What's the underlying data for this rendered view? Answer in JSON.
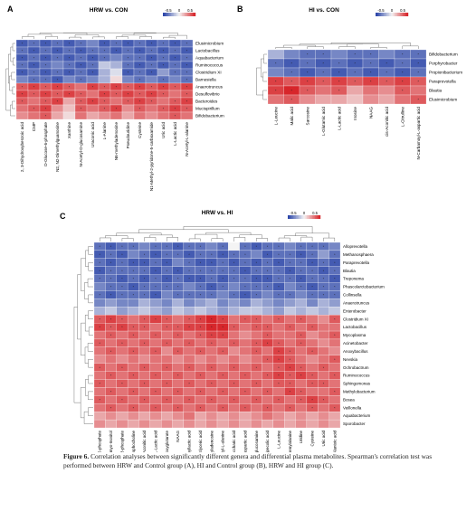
{
  "caption": {
    "label": "Figure 6.",
    "text": "Correlation analyses between significantly different genera and differential plasma metabolites. Spearman's correlation test was performed between HRW and Control group (A), HI and Control group (B), HRW and HI group (C)."
  },
  "colors": {
    "low": "#2b45a8",
    "mid": "#f4f4f4",
    "high": "#d7262b"
  },
  "chart_data": [
    {
      "type": "heatmap",
      "panel": "A",
      "title": "HRW vs. CON",
      "legend_ticks": [
        "-0.5",
        "0",
        "0.5"
      ],
      "rows": [
        "Elusimicrobium",
        "Lactobacillus",
        "Aquabacterium",
        "Ruminococcus",
        "Clostridium XI",
        "Barnesiella",
        "Anaerotruncus",
        "Desulfovibrio",
        "Bacteroides",
        "Mucispirillum",
        "Bifidobacterium"
      ],
      "cols": [
        "2, 3-Dihydroxybenzoic acid",
        "CMP",
        "D-Glucose-6-phosphate",
        "N2, N2-Dimethylguanosine",
        "Xanthine",
        "N-Acetyl-D-glucosamine",
        "Uraconic acid",
        "L-Alanine",
        "N6-methyladenosine",
        "Pseudouridine",
        "Cysteine",
        "N1-Methyl-2-pyridone-5-carboxamide",
        "Uric acid",
        "L-Lactic acid",
        "N-Acetyl-L-alanine"
      ],
      "values": [
        [
          -0.7,
          -0.6,
          -0.7,
          -0.6,
          -0.7,
          -0.6,
          -0.5,
          -0.7,
          -0.6,
          -0.7,
          -0.6,
          -0.7,
          -0.6,
          -0.7,
          -0.6
        ],
        [
          -0.6,
          -0.7,
          -0.6,
          -0.7,
          -0.6,
          -0.7,
          -0.6,
          -0.6,
          -0.7,
          -0.6,
          -0.7,
          -0.6,
          -0.7,
          -0.6,
          -0.7
        ],
        [
          -0.7,
          -0.6,
          -0.7,
          -0.6,
          -0.7,
          -0.6,
          -0.7,
          -0.6,
          -0.5,
          -0.6,
          -0.6,
          -0.7,
          -0.6,
          -0.7,
          -0.6
        ],
        [
          -0.6,
          -0.7,
          -0.6,
          -0.5,
          -0.6,
          -0.7,
          -0.6,
          -0.2,
          -0.3,
          -0.6,
          -0.7,
          -0.6,
          -0.7,
          -0.6,
          -0.7
        ],
        [
          -0.7,
          -0.6,
          -0.7,
          -0.6,
          -0.7,
          -0.6,
          -0.7,
          -0.3,
          -0.1,
          -0.7,
          -0.6,
          -0.7,
          -0.4,
          -0.6,
          -0.6
        ],
        [
          -0.5,
          -0.6,
          -0.6,
          -0.7,
          -0.5,
          -0.6,
          -0.5,
          -0.3,
          0.1,
          -0.5,
          -0.6,
          -0.5,
          -0.6,
          -0.5,
          -0.6
        ],
        [
          0.6,
          0.7,
          0.6,
          0.7,
          0.6,
          0.5,
          0.7,
          0.6,
          0.7,
          0.6,
          0.7,
          0.6,
          0.7,
          0.6,
          0.7
        ],
        [
          0.7,
          0.6,
          0.7,
          0.6,
          0.7,
          0.6,
          0.5,
          0.7,
          0.6,
          0.7,
          0.6,
          0.7,
          0.6,
          0.5,
          0.6
        ],
        [
          0.6,
          0.5,
          0.6,
          0.7,
          0.3,
          0.6,
          0.7,
          0.6,
          0.5,
          0.6,
          0.7,
          0.6,
          0.5,
          0.6,
          0.7
        ],
        [
          0.5,
          0.6,
          0.7,
          0.4,
          0.2,
          0.6,
          0.5,
          0.6,
          0.7,
          0.4,
          0.6,
          0.5,
          0.6,
          0.7,
          0.6
        ],
        [
          0.4,
          0.5,
          0.6,
          0.3,
          0.1,
          0.5,
          0.3,
          0.4,
          0.5,
          0.3,
          0.5,
          0.4,
          0.5,
          0.6,
          0.5
        ]
      ]
    },
    {
      "type": "heatmap",
      "panel": "B",
      "title": "HI vs. CON",
      "legend_ticks": [
        "-0.5",
        "0",
        "0.5"
      ],
      "rows": [
        "Bifidobacterium",
        "Porphyrobacter",
        "Propionibacterium",
        "Paraprevotella",
        "Blautia",
        "Elusimicrobium"
      ],
      "cols": [
        "L-Leucine",
        "Malic acid",
        "Sarcosine",
        "L-Glutamic acid",
        "L-Lactic acid",
        "Inosine",
        "NAAG",
        "cis-Aconitic acid",
        "L-Citrulline",
        "N-Carbamoyl-L-aspartic acid"
      ],
      "values": [
        [
          -0.3,
          -0.5,
          -0.6,
          -0.6,
          -0.5,
          -0.6,
          -0.6,
          -0.5,
          -0.6,
          -0.6
        ],
        [
          -0.6,
          -0.7,
          -0.6,
          -0.7,
          -0.6,
          -0.7,
          -0.6,
          -0.7,
          -0.6,
          -0.7
        ],
        [
          -0.5,
          -0.6,
          -0.7,
          -0.6,
          -0.7,
          -0.6,
          -0.7,
          -0.6,
          -0.7,
          -0.6
        ],
        [
          0.7,
          0.6,
          0.7,
          0.6,
          0.7,
          0.6,
          0.7,
          0.6,
          0.7,
          0.6
        ],
        [
          0.7,
          0.8,
          0.6,
          0.5,
          0.6,
          0.3,
          0.5,
          0.4,
          0.6,
          0.5
        ],
        [
          0.5,
          0.6,
          0.4,
          0.3,
          0.3,
          0.2,
          0.4,
          0.3,
          0.5,
          0.6
        ]
      ]
    },
    {
      "type": "heatmap",
      "panel": "C",
      "title": "HRW vs. HI",
      "legend_ticks": [
        "-0.5",
        "0",
        "0.5"
      ],
      "rows": [
        "Alloprevotella",
        "Methanosphaera",
        "Paraprevotella",
        "Blautia",
        "Treponema",
        "Phascolarctobacterium",
        "Collinsella",
        "Anaerotruncus",
        "Enterobacter",
        "Clostridium XI",
        "Lactobacillus",
        "Mycoplasma",
        "Acinetobacter",
        "Anoxybacillus",
        "Nevskia",
        "Ochrobactrum",
        "Ruminococcus",
        "Sphingomonas",
        "Methylobacterium",
        "Bosea",
        "Veillonella",
        "Aquabacterium",
        "Sporobacter"
      ],
      "cols": [
        "D-Glucose-6-phosphate",
        "myo-Inositol",
        "sn-Glycerol-3-phosphate",
        "Glycerophosphocholine",
        "cis-Aconitic acid",
        "L-Lactic acid",
        "L-2-Hydroxyglutarate",
        "NAAG",
        "Phenyllactic acid",
        "Glyceric acid",
        "N6-methyladenosine",
        "N-Acetyl-L-alanine",
        "D-Saccharic acid",
        "N-Carbamoyl-L-aspartic acid",
        "N-Acetyl-D-glucosamine",
        "L-Pipecolic acid",
        "L-Leucine",
        "L-Phenylalanine",
        "Uridine",
        "Cysteine",
        "Uric acid",
        "Alantoic acid"
      ],
      "values": [
        [
          -0.6,
          -0.7,
          -0.6,
          -0.6,
          -0.5,
          -0.6,
          -0.6,
          -0.7,
          -0.6,
          -0.6,
          -0.5,
          -0.6,
          0.0,
          -0.6,
          -0.7,
          -0.6,
          -0.6,
          -0.5,
          -0.6,
          -0.6,
          -0.6,
          -0.5
        ],
        [
          -0.7,
          -0.6,
          -0.7,
          -0.5,
          -0.6,
          -0.7,
          -0.6,
          -0.6,
          -0.7,
          -0.6,
          -0.6,
          -0.7,
          -0.6,
          -0.6,
          -0.5,
          -0.7,
          -0.6,
          -0.6,
          -0.7,
          -0.6,
          -0.4,
          -0.6
        ],
        [
          -0.6,
          -0.7,
          -0.6,
          -0.7,
          -0.7,
          -0.6,
          -0.7,
          -0.5,
          -0.6,
          -0.7,
          -0.7,
          -0.6,
          -0.7,
          -0.6,
          -0.7,
          -0.6,
          -0.7,
          -0.6,
          -0.6,
          -0.7,
          -0.6,
          -0.7
        ],
        [
          -0.7,
          -0.6,
          -0.6,
          -0.6,
          -0.6,
          -0.7,
          -0.6,
          -0.7,
          -0.6,
          -0.6,
          -0.6,
          -0.6,
          -0.6,
          -0.7,
          -0.6,
          -0.6,
          -0.6,
          -0.7,
          -0.6,
          -0.6,
          -0.7,
          -0.6
        ],
        [
          -0.6,
          -0.6,
          -0.7,
          -0.6,
          -0.7,
          -0.6,
          -0.7,
          -0.6,
          -0.7,
          -0.7,
          -0.6,
          -0.7,
          -0.6,
          -0.6,
          -0.7,
          -0.7,
          -0.6,
          -0.6,
          -0.7,
          -0.6,
          -0.6,
          -0.7
        ],
        [
          -0.5,
          -0.6,
          -0.6,
          -0.7,
          -0.6,
          -0.6,
          -0.6,
          -0.6,
          -0.5,
          -0.6,
          -0.7,
          -0.6,
          -0.5,
          -0.6,
          -0.6,
          -0.6,
          -0.7,
          -0.5,
          -0.6,
          -0.7,
          -0.6,
          -0.6
        ],
        [
          -0.6,
          -0.7,
          -0.6,
          -0.6,
          -0.6,
          -0.7,
          -0.5,
          -0.6,
          -0.6,
          -0.6,
          -0.6,
          -0.5,
          -0.6,
          -0.7,
          -0.6,
          -0.5,
          -0.6,
          -0.6,
          -0.5,
          -0.6,
          -0.6,
          -0.6
        ],
        [
          -0.5,
          -0.4,
          -0.5,
          -0.5,
          -0.3,
          -0.4,
          -0.5,
          -0.3,
          -0.5,
          -0.4,
          -0.3,
          -0.5,
          -0.4,
          -0.5,
          -0.3,
          -0.4,
          -0.5,
          -0.4,
          -0.3,
          -0.5,
          -0.3,
          -0.4
        ],
        [
          -0.3,
          -0.2,
          -0.4,
          -0.3,
          -0.2,
          -0.3,
          -0.4,
          -0.2,
          -0.3,
          -0.2,
          -0.3,
          -0.4,
          -0.3,
          -0.2,
          -0.2,
          -0.3,
          -0.4,
          -0.2,
          -0.3,
          -0.2,
          -0.3,
          -0.2
        ],
        [
          0.6,
          0.7,
          0.6,
          0.5,
          0.6,
          0.7,
          0.6,
          0.5,
          0.6,
          0.7,
          0.8,
          0.7,
          0.5,
          0.6,
          0.6,
          0.5,
          0.6,
          0.5,
          0.6,
          0.5,
          0.4,
          0.6
        ],
        [
          0.7,
          0.6,
          0.7,
          0.6,
          0.6,
          0.5,
          0.6,
          0.6,
          0.7,
          0.7,
          0.8,
          0.8,
          0.6,
          0.5,
          0.6,
          0.6,
          0.5,
          0.6,
          0.5,
          0.6,
          0.5,
          0.5
        ],
        [
          0.5,
          0.6,
          0.5,
          0.6,
          0.5,
          0.6,
          0.5,
          0.6,
          0.5,
          0.6,
          0.7,
          0.7,
          0.5,
          0.4,
          0.5,
          0.6,
          0.5,
          0.5,
          0.6,
          0.4,
          0.5,
          0.6
        ],
        [
          0.6,
          0.5,
          0.6,
          0.5,
          0.6,
          0.5,
          0.6,
          0.5,
          0.6,
          0.5,
          0.6,
          0.5,
          0.6,
          0.5,
          0.6,
          0.7,
          0.6,
          0.5,
          0.6,
          0.5,
          0.4,
          0.5
        ],
        [
          0.5,
          0.6,
          0.5,
          0.6,
          0.5,
          0.6,
          0.4,
          0.6,
          0.5,
          0.6,
          0.5,
          0.6,
          0.4,
          0.5,
          0.6,
          0.5,
          0.7,
          0.6,
          0.5,
          0.6,
          0.5,
          0.4
        ],
        [
          0.4,
          0.5,
          0.4,
          0.5,
          0.4,
          0.5,
          0.5,
          0.4,
          0.5,
          0.4,
          0.5,
          0.4,
          0.5,
          0.4,
          0.5,
          0.6,
          0.7,
          0.6,
          0.5,
          0.4,
          0.5,
          0.6
        ],
        [
          0.6,
          0.5,
          0.6,
          0.5,
          0.6,
          0.5,
          0.6,
          0.5,
          0.6,
          0.5,
          0.6,
          0.5,
          0.6,
          0.5,
          0.6,
          0.5,
          0.6,
          0.7,
          0.6,
          0.5,
          0.6,
          0.5
        ],
        [
          0.5,
          0.6,
          0.5,
          0.6,
          0.5,
          0.6,
          0.5,
          0.6,
          0.5,
          0.6,
          0.5,
          0.6,
          0.5,
          0.6,
          0.5,
          0.6,
          0.7,
          0.6,
          0.7,
          0.6,
          0.5,
          0.6
        ],
        [
          0.6,
          0.5,
          0.6,
          0.5,
          0.6,
          0.5,
          0.6,
          0.5,
          0.6,
          0.5,
          0.6,
          0.5,
          0.6,
          0.5,
          0.6,
          0.5,
          0.6,
          0.6,
          0.5,
          0.6,
          0.6,
          0.5
        ],
        [
          0.5,
          0.6,
          0.5,
          0.6,
          0.5,
          0.6,
          0.5,
          0.6,
          0.5,
          0.6,
          0.5,
          0.6,
          0.5,
          0.6,
          0.5,
          0.6,
          0.5,
          0.7,
          0.6,
          0.5,
          0.5,
          0.6
        ],
        [
          0.6,
          0.5,
          0.6,
          0.5,
          0.6,
          0.5,
          0.6,
          0.5,
          0.6,
          0.5,
          0.6,
          0.5,
          0.6,
          0.5,
          0.6,
          0.5,
          0.6,
          0.5,
          0.6,
          0.7,
          0.6,
          0.5
        ],
        [
          0.5,
          0.6,
          0.5,
          0.6,
          0.5,
          0.6,
          0.5,
          0.6,
          0.5,
          0.6,
          0.5,
          0.6,
          0.5,
          0.6,
          0.5,
          0.6,
          0.5,
          0.6,
          0.5,
          0.6,
          0.5,
          0.6
        ],
        [
          0.3,
          0.4,
          0.3,
          0.4,
          0.3,
          0.4,
          0.3,
          0.4,
          0.5,
          0.3,
          0.4,
          0.3,
          0.4,
          0.3,
          0.4,
          0.5,
          0.4,
          0.3,
          0.4,
          0.3,
          0.4,
          0.3
        ],
        [
          0.4,
          0.3,
          0.4,
          0.3,
          0.4,
          0.3,
          0.4,
          0.3,
          0.4,
          0.3,
          0.4,
          0.3,
          0.4,
          0.3,
          0.4,
          0.3,
          0.4,
          0.3,
          0.4,
          0.3,
          0.4,
          0.3
        ]
      ]
    }
  ]
}
